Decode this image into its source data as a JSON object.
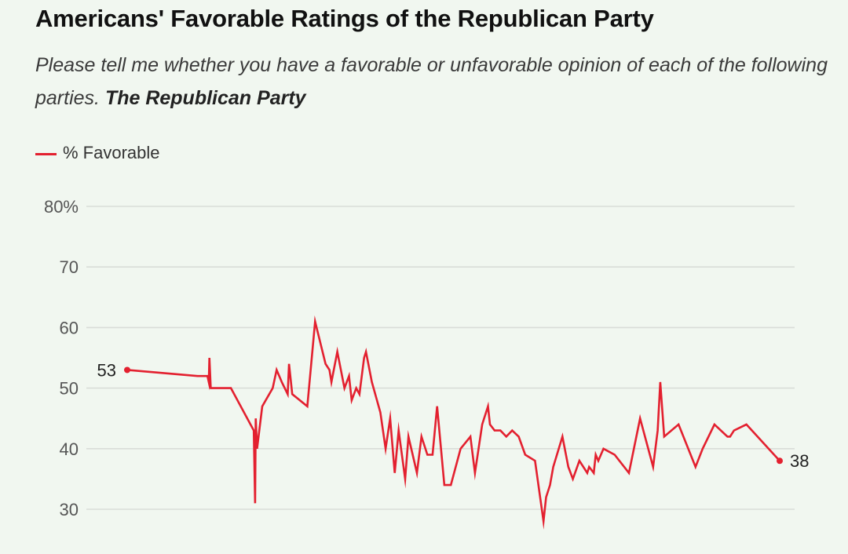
{
  "header": {
    "title": "Americans' Favorable Ratings of the Republican Party",
    "subtitle_plain": "Please tell me whether you have a favorable or unfavorable opinion of each of the following parties.",
    "subtitle_emphasis": "The Republican Party"
  },
  "legend": {
    "label": "% Favorable",
    "color": "#e3202f"
  },
  "chart_data": {
    "type": "line",
    "title": "Americans' Favorable Ratings of the Republican Party",
    "xlabel": "",
    "ylabel": "% Favorable",
    "ylim": [
      30,
      80
    ],
    "yticks": [
      80,
      70,
      60,
      50,
      40,
      30
    ],
    "ytick_labels": [
      "80%",
      "70",
      "60",
      "50",
      "40",
      "30"
    ],
    "xlim": [
      0,
      100
    ],
    "x_note": "No x-axis labels shown; x is a relative time index (0 = first poll, 100 = latest poll)",
    "grid": true,
    "legend_position": "top-left",
    "series": [
      {
        "name": "% Favorable",
        "color": "#e3202f",
        "x": [
          0,
          10.8,
          12.3,
          12.5,
          12.6,
          12.8,
          15.9,
          19.4,
          19.6,
          19.7,
          19.9,
          20.7,
          22.3,
          22.9,
          23.7,
          24.6,
          24.8,
          25.3,
          27.6,
          28.8,
          30.4,
          31.0,
          31.3,
          32.2,
          33.3,
          34.0,
          34.4,
          35.1,
          35.6,
          36.3,
          36.6,
          37.5,
          38.8,
          39.6,
          40.3,
          41.0,
          41.6,
          42.6,
          43.1,
          44.4,
          45.1,
          46.0,
          46.8,
          47.5,
          48.6,
          49.2,
          49.3,
          49.6,
          51.1,
          52.6,
          53.3,
          54.4,
          55.3,
          55.6,
          56.3,
          57.2,
          58.1,
          59.0,
          60.0,
          61.0,
          62.5,
          63.8,
          64.2,
          64.8,
          65.3,
          66.7,
          67.6,
          68.3,
          69.3,
          70.5,
          70.8,
          71.5,
          71.8,
          72.2,
          73.0,
          74.7,
          76.9,
          78.6,
          80.6,
          81.3,
          81.7,
          82.3,
          84.5,
          87.1,
          88.2,
          90.0,
          92.0,
          92.4,
          93.0,
          94.9,
          100
        ],
        "values": [
          53,
          52,
          52,
          51,
          55,
          50,
          50,
          43,
          31,
          45,
          40,
          47,
          50,
          53,
          51,
          49,
          54,
          49,
          47,
          61,
          54,
          53,
          51,
          56,
          50,
          52,
          48,
          50,
          49,
          55,
          56,
          51,
          46,
          40,
          45,
          36,
          43,
          35,
          42,
          36,
          42,
          39,
          39,
          47,
          34,
          34,
          34,
          34,
          40,
          42,
          36,
          44,
          47,
          44,
          43,
          43,
          42,
          43,
          42,
          39,
          38,
          28,
          32,
          34,
          37,
          42,
          37,
          35,
          38,
          36,
          37,
          36,
          39,
          38,
          40,
          39,
          36,
          45,
          37,
          43,
          51,
          42,
          44,
          37,
          40,
          44,
          42,
          42,
          43,
          44,
          38
        ]
      }
    ],
    "annotations": [
      {
        "text": "53",
        "target": "first point"
      },
      {
        "text": "38",
        "target": "last point"
      }
    ]
  }
}
